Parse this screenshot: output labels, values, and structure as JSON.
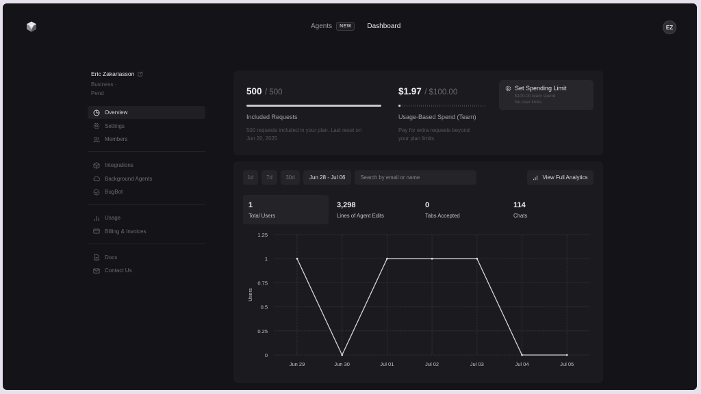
{
  "header": {
    "nav": [
      {
        "label": "Agents",
        "badge": "NEW"
      },
      {
        "label": "Dashboard",
        "active": true
      }
    ],
    "avatar_initials": "EZ"
  },
  "sidebar": {
    "user_name": "Eric Zakariasson",
    "plan_line1": "Business ·",
    "plan_line2": "Pend",
    "groups": [
      [
        {
          "label": "Overview",
          "icon": "pie-chart-icon",
          "active": true
        },
        {
          "label": "Settings",
          "icon": "gear-icon"
        },
        {
          "label": "Members",
          "icon": "users-icon"
        }
      ],
      [
        {
          "label": "Integrations",
          "icon": "cube-icon"
        },
        {
          "label": "Background Agents",
          "icon": "cloud-icon"
        },
        {
          "label": "BugBot",
          "icon": "check-circle-icon"
        }
      ],
      [
        {
          "label": "Usage",
          "icon": "bar-chart-icon"
        },
        {
          "label": "Billing & Invoices",
          "icon": "credit-card-icon"
        }
      ],
      [
        {
          "label": "Docs",
          "icon": "document-icon"
        },
        {
          "label": "Contact Us",
          "icon": "mail-icon"
        }
      ]
    ]
  },
  "usage": {
    "included": {
      "value": "500",
      "of": "/ 500",
      "label": "Included Requests",
      "desc_line1": "500 requests included in your plan. Last reset on",
      "desc_line2": "Jun 20, 2025",
      "percent": 100
    },
    "spend": {
      "value": "$1.97",
      "of": "/ $100.00",
      "label": "Usage-Based Spend (Team)",
      "desc_line1": "Pay for extra requests beyond",
      "desc_line2": "your plan limits.",
      "percent": 2
    },
    "limit_button": {
      "title": "Set Spending Limit",
      "line1": "$100.00 team spend",
      "line2": "No user limits"
    }
  },
  "analytics": {
    "ranges": [
      "1d",
      "7d",
      "30d"
    ],
    "date_range": "Jun 28 - Jul 06",
    "search_placeholder": "Search by email or name",
    "full_analytics_label": "View Full Analytics",
    "stats": [
      {
        "value": "1",
        "label": "Total Users",
        "active": true
      },
      {
        "value": "3,298",
        "label": "Lines of Agent Edits"
      },
      {
        "value": "0",
        "label": "Tabs Accepted"
      },
      {
        "value": "114",
        "label": "Chats"
      }
    ]
  },
  "chart_data": {
    "type": "line",
    "title": "",
    "xlabel": "",
    "ylabel": "Users",
    "categories": [
      "Jun 29",
      "Jun 30",
      "Jul 01",
      "Jul 02",
      "Jul 03",
      "Jul 04",
      "Jul 05"
    ],
    "series": [
      {
        "name": "Total Users",
        "values": [
          1,
          0,
          1,
          1,
          1,
          0,
          0
        ]
      }
    ],
    "yticks": [
      "0",
      "0.25",
      "0.5",
      "0.75",
      "1",
      "1.25"
    ],
    "ylim": [
      0,
      1.25
    ],
    "grid": true,
    "legend": "none"
  },
  "colors": {
    "background": "#141418",
    "card": "#1b1b1f",
    "line": "#d4d4d8",
    "grid": "#2c2c32"
  }
}
